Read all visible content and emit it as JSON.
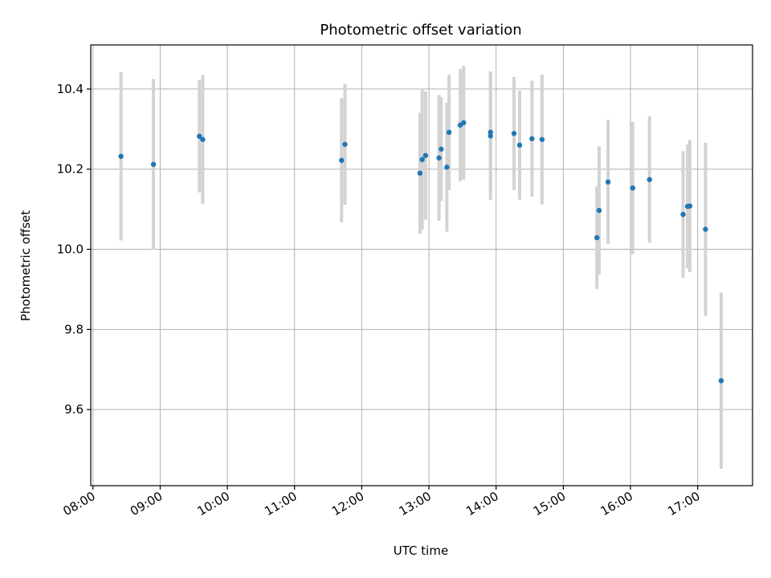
{
  "chart_data": {
    "type": "scatter",
    "title": "Photometric offset variation",
    "xlabel": "UTC time",
    "ylabel": "Photometric offset",
    "x_tick_labels": [
      "08:00",
      "09:00",
      "10:00",
      "11:00",
      "12:00",
      "13:00",
      "14:00",
      "15:00",
      "16:00",
      "17:00"
    ],
    "x_tick_times": [
      "08:00",
      "09:00",
      "10:00",
      "11:00",
      "12:00",
      "13:00",
      "14:00",
      "15:00",
      "16:00",
      "17:00"
    ],
    "xlim": [
      "07:58",
      "17:49"
    ],
    "y_ticks": [
      9.6,
      9.8,
      10.0,
      10.2,
      10.4
    ],
    "y_tick_labels": [
      "9.6",
      "9.8",
      "10.0",
      "10.2",
      "10.4"
    ],
    "ylim": [
      9.41,
      10.51
    ],
    "grid": true,
    "colors": {
      "point": "#1f77b4",
      "errorbar": "#d3d3d3",
      "grid": "#b0b0b0",
      "axes": "#000000"
    },
    "points": [
      {
        "x": "08:25",
        "y": 10.232,
        "err": 0.21
      },
      {
        "x": "08:54",
        "y": 10.212,
        "err": 0.213
      },
      {
        "x": "09:35",
        "y": 10.282,
        "err": 0.14
      },
      {
        "x": "09:38",
        "y": 10.274,
        "err": 0.161
      },
      {
        "x": "11:42",
        "y": 10.222,
        "err": 0.155
      },
      {
        "x": "11:45",
        "y": 10.262,
        "err": 0.151
      },
      {
        "x": "12:52",
        "y": 10.19,
        "err": 0.151
      },
      {
        "x": "12:54",
        "y": 10.224,
        "err": 0.175
      },
      {
        "x": "12:57",
        "y": 10.234,
        "err": 0.16
      },
      {
        "x": "13:09",
        "y": 10.228,
        "err": 0.157
      },
      {
        "x": "13:11",
        "y": 10.25,
        "err": 0.13
      },
      {
        "x": "13:16",
        "y": 10.205,
        "err": 0.161
      },
      {
        "x": "13:18",
        "y": 10.292,
        "err": 0.144
      },
      {
        "x": "13:28",
        "y": 10.31,
        "err": 0.14
      },
      {
        "x": "13:31",
        "y": 10.316,
        "err": 0.142
      },
      {
        "x": "13:55",
        "y": 10.292,
        "err": 0.152
      },
      {
        "x": "13:55",
        "y": 10.283,
        "err": 0.16
      },
      {
        "x": "14:16",
        "y": 10.289,
        "err": 0.141
      },
      {
        "x": "14:21",
        "y": 10.26,
        "err": 0.136
      },
      {
        "x": "14:32",
        "y": 10.276,
        "err": 0.145
      },
      {
        "x": "14:41",
        "y": 10.274,
        "err": 0.162
      },
      {
        "x": "15:30",
        "y": 10.029,
        "err": 0.128
      },
      {
        "x": "15:32",
        "y": 10.097,
        "err": 0.16
      },
      {
        "x": "15:40",
        "y": 10.168,
        "err": 0.155
      },
      {
        "x": "16:02",
        "y": 10.153,
        "err": 0.165
      },
      {
        "x": "16:17",
        "y": 10.174,
        "err": 0.158
      },
      {
        "x": "16:47",
        "y": 10.087,
        "err": 0.158
      },
      {
        "x": "16:51",
        "y": 10.107,
        "err": 0.155
      },
      {
        "x": "16:53",
        "y": 10.108,
        "err": 0.165
      },
      {
        "x": "17:07",
        "y": 10.05,
        "err": 0.216
      },
      {
        "x": "17:21",
        "y": 9.672,
        "err": 0.22
      }
    ]
  }
}
